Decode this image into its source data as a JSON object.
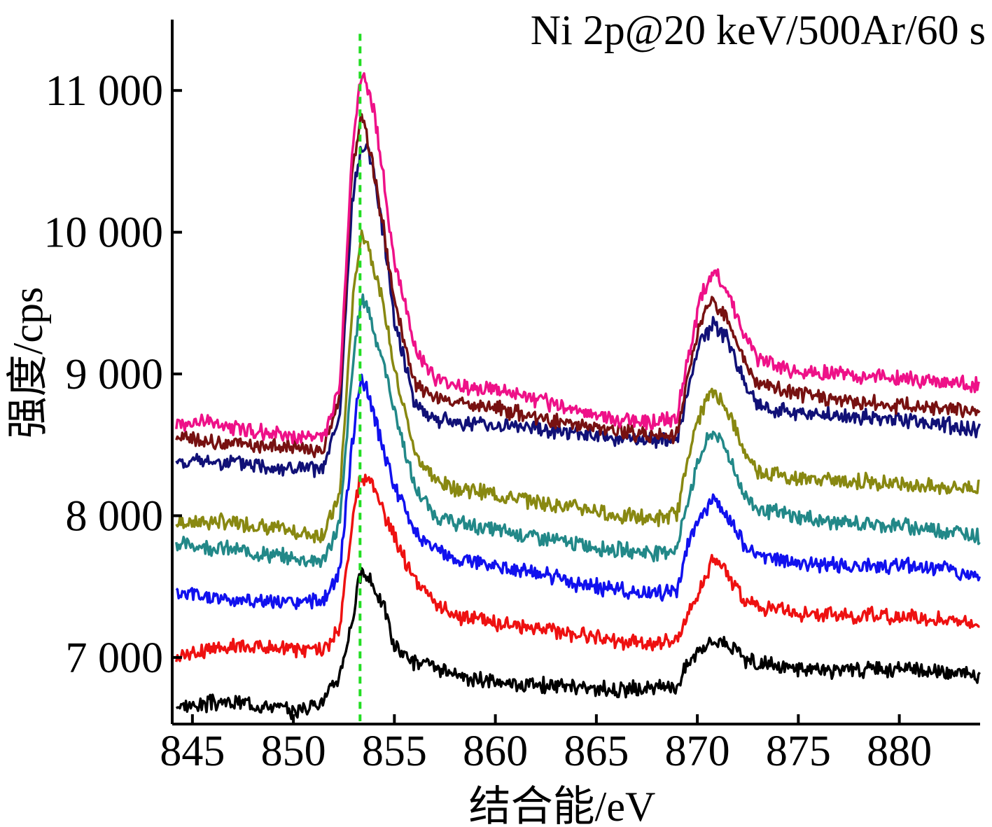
{
  "chart_data": {
    "type": "line",
    "title": "Ni 2p@20 keV/500Ar/60 s",
    "xlabel": "结合能/eV",
    "ylabel": "强度/cps",
    "xlim": [
      844,
      884
    ],
    "ylim": [
      6530,
      11500
    ],
    "xticks": [
      845,
      850,
      855,
      860,
      865,
      870,
      875,
      880
    ],
    "xtick_labels": [
      "845",
      "850",
      "855",
      "860",
      "865",
      "870",
      "875",
      "880"
    ],
    "yticks": [
      7000,
      8000,
      9000,
      10000,
      11000
    ],
    "ytick_labels": [
      "7 000",
      "8 000",
      "9 000",
      "10 000",
      "11 000"
    ],
    "reference_line": {
      "x": 853.3,
      "y_range": [
        6550,
        11400
      ],
      "color": "#22dd22",
      "style": "dashed"
    },
    "grid": false,
    "legend": "none",
    "series": [
      {
        "color": "#000000",
        "values": [
          [
            844.2,
            6650
          ],
          [
            846,
            6680
          ],
          [
            848,
            6680
          ],
          [
            850,
            6620
          ],
          [
            851.5,
            6700
          ],
          [
            852.3,
            6880
          ],
          [
            852.9,
            7250
          ],
          [
            853.3,
            7580
          ],
          [
            853.6,
            7580
          ],
          [
            854,
            7500
          ],
          [
            854.5,
            7350
          ],
          [
            855,
            7080
          ],
          [
            856,
            6970
          ],
          [
            857,
            6930
          ],
          [
            858,
            6860
          ],
          [
            860,
            6830
          ],
          [
            862,
            6810
          ],
          [
            864,
            6790
          ],
          [
            866,
            6770
          ],
          [
            868,
            6780
          ],
          [
            869,
            6800
          ],
          [
            869.5,
            6960
          ],
          [
            870.2,
            7080
          ],
          [
            870.8,
            7120
          ],
          [
            871.5,
            7110
          ],
          [
            872.3,
            6990
          ],
          [
            873,
            6950
          ],
          [
            875,
            6920
          ],
          [
            877,
            6910
          ],
          [
            880,
            6920
          ],
          [
            882,
            6900
          ],
          [
            884,
            6870
          ]
        ]
      },
      {
        "color": "#ee1111",
        "values": [
          [
            844.2,
            7000
          ],
          [
            846,
            7070
          ],
          [
            848,
            7080
          ],
          [
            850,
            7060
          ],
          [
            851.5,
            7050
          ],
          [
            852.3,
            7200
          ],
          [
            852.9,
            7950
          ],
          [
            853.3,
            8250
          ],
          [
            853.6,
            8270
          ],
          [
            854,
            8200
          ],
          [
            854.5,
            8000
          ],
          [
            855,
            7850
          ],
          [
            856,
            7550
          ],
          [
            857,
            7380
          ],
          [
            858,
            7290
          ],
          [
            860,
            7240
          ],
          [
            862,
            7210
          ],
          [
            864,
            7170
          ],
          [
            866,
            7120
          ],
          [
            868,
            7100
          ],
          [
            869,
            7110
          ],
          [
            869.5,
            7300
          ],
          [
            870.2,
            7520
          ],
          [
            870.8,
            7700
          ],
          [
            871.5,
            7600
          ],
          [
            872.3,
            7400
          ],
          [
            873,
            7360
          ],
          [
            875,
            7310
          ],
          [
            877,
            7300
          ],
          [
            880,
            7290
          ],
          [
            882,
            7270
          ],
          [
            884,
            7230
          ]
        ]
      },
      {
        "color": "#1111ee",
        "values": [
          [
            844.2,
            7450
          ],
          [
            846,
            7420
          ],
          [
            848,
            7400
          ],
          [
            850,
            7380
          ],
          [
            851.5,
            7400
          ],
          [
            852.3,
            7600
          ],
          [
            852.9,
            8500
          ],
          [
            853.3,
            8950
          ],
          [
            853.6,
            8920
          ],
          [
            854,
            8700
          ],
          [
            854.5,
            8450
          ],
          [
            855,
            8200
          ],
          [
            856,
            7900
          ],
          [
            857,
            7760
          ],
          [
            858,
            7700
          ],
          [
            860,
            7650
          ],
          [
            862,
            7600
          ],
          [
            864,
            7520
          ],
          [
            866,
            7480
          ],
          [
            868,
            7450
          ],
          [
            869,
            7470
          ],
          [
            869.5,
            7780
          ],
          [
            870.2,
            8000
          ],
          [
            870.8,
            8120
          ],
          [
            871.5,
            8000
          ],
          [
            872.3,
            7790
          ],
          [
            873,
            7720
          ],
          [
            875,
            7670
          ],
          [
            877,
            7650
          ],
          [
            880,
            7650
          ],
          [
            882,
            7630
          ],
          [
            884,
            7580
          ]
        ]
      },
      {
        "color": "#228888",
        "values": [
          [
            844.2,
            7800
          ],
          [
            846,
            7780
          ],
          [
            848,
            7740
          ],
          [
            850,
            7700
          ],
          [
            851.5,
            7680
          ],
          [
            852.3,
            7950
          ],
          [
            852.9,
            9000
          ],
          [
            853.3,
            9500
          ],
          [
            853.6,
            9520
          ],
          [
            854,
            9300
          ],
          [
            854.5,
            9050
          ],
          [
            855,
            8750
          ],
          [
            856,
            8200
          ],
          [
            857,
            8000
          ],
          [
            858,
            7950
          ],
          [
            860,
            7900
          ],
          [
            862,
            7850
          ],
          [
            864,
            7800
          ],
          [
            866,
            7760
          ],
          [
            868,
            7740
          ],
          [
            869,
            7770
          ],
          [
            869.5,
            8100
          ],
          [
            870.2,
            8450
          ],
          [
            870.8,
            8600
          ],
          [
            871.5,
            8450
          ],
          [
            872.3,
            8150
          ],
          [
            873,
            8050
          ],
          [
            875,
            7990
          ],
          [
            877,
            7950
          ],
          [
            880,
            7930
          ],
          [
            882,
            7900
          ],
          [
            884,
            7860
          ]
        ]
      },
      {
        "color": "#888811",
        "values": [
          [
            844.2,
            7950
          ],
          [
            846,
            7960
          ],
          [
            848,
            7940
          ],
          [
            850,
            7880
          ],
          [
            851.5,
            7870
          ],
          [
            852.3,
            8150
          ],
          [
            852.9,
            9450
          ],
          [
            853.3,
            9950
          ],
          [
            853.6,
            9970
          ],
          [
            854,
            9750
          ],
          [
            854.5,
            9450
          ],
          [
            855,
            9050
          ],
          [
            856,
            8450
          ],
          [
            857,
            8250
          ],
          [
            858,
            8200
          ],
          [
            860,
            8150
          ],
          [
            862,
            8100
          ],
          [
            864,
            8060
          ],
          [
            866,
            8000
          ],
          [
            868,
            7980
          ],
          [
            869,
            8010
          ],
          [
            869.5,
            8400
          ],
          [
            870.2,
            8750
          ],
          [
            870.8,
            8880
          ],
          [
            871.5,
            8750
          ],
          [
            872.3,
            8450
          ],
          [
            873,
            8320
          ],
          [
            875,
            8260
          ],
          [
            877,
            8250
          ],
          [
            880,
            8230
          ],
          [
            882,
            8200
          ],
          [
            884,
            8200
          ]
        ]
      },
      {
        "color": "#111177",
        "values": [
          [
            844.2,
            8380
          ],
          [
            846,
            8380
          ],
          [
            848,
            8360
          ],
          [
            850,
            8330
          ],
          [
            851.5,
            8330
          ],
          [
            852.3,
            8700
          ],
          [
            852.9,
            10200
          ],
          [
            853.3,
            10550
          ],
          [
            853.6,
            10650
          ],
          [
            854,
            10400
          ],
          [
            854.5,
            9950
          ],
          [
            855,
            9400
          ],
          [
            856,
            8800
          ],
          [
            857,
            8680
          ],
          [
            858,
            8660
          ],
          [
            860,
            8640
          ],
          [
            862,
            8620
          ],
          [
            864,
            8580
          ],
          [
            866,
            8540
          ],
          [
            868,
            8530
          ],
          [
            869,
            8550
          ],
          [
            869.5,
            8850
          ],
          [
            870.2,
            9250
          ],
          [
            870.8,
            9350
          ],
          [
            871.5,
            9250
          ],
          [
            872.3,
            8950
          ],
          [
            873,
            8780
          ],
          [
            875,
            8720
          ],
          [
            877,
            8700
          ],
          [
            880,
            8680
          ],
          [
            882,
            8650
          ],
          [
            884,
            8600
          ]
        ]
      },
      {
        "color": "#771111",
        "values": [
          [
            844.2,
            8550
          ],
          [
            846,
            8520
          ],
          [
            848,
            8500
          ],
          [
            850,
            8480
          ],
          [
            851.5,
            8460
          ],
          [
            852.3,
            8850
          ],
          [
            852.9,
            10400
          ],
          [
            853.3,
            10800
          ],
          [
            853.6,
            10700
          ],
          [
            854,
            10400
          ],
          [
            854.5,
            10000
          ],
          [
            855,
            9500
          ],
          [
            856,
            8930
          ],
          [
            857,
            8830
          ],
          [
            858,
            8800
          ],
          [
            860,
            8760
          ],
          [
            862,
            8700
          ],
          [
            864,
            8640
          ],
          [
            866,
            8600
          ],
          [
            868,
            8560
          ],
          [
            869,
            8580
          ],
          [
            869.5,
            8950
          ],
          [
            870.2,
            9400
          ],
          [
            870.8,
            9520
          ],
          [
            871.5,
            9400
          ],
          [
            872.3,
            9100
          ],
          [
            873,
            8930
          ],
          [
            875,
            8860
          ],
          [
            877,
            8820
          ],
          [
            880,
            8780
          ],
          [
            882,
            8760
          ],
          [
            884,
            8730
          ]
        ]
      },
      {
        "color": "#ee1188",
        "values": [
          [
            844.2,
            8650
          ],
          [
            846,
            8660
          ],
          [
            848,
            8600
          ],
          [
            850,
            8560
          ],
          [
            851.5,
            8550
          ],
          [
            852.3,
            8900
          ],
          [
            852.9,
            10550
          ],
          [
            853.3,
            11100
          ],
          [
            853.6,
            11050
          ],
          [
            854,
            10850
          ],
          [
            854.5,
            10350
          ],
          [
            855,
            9800
          ],
          [
            856,
            9200
          ],
          [
            857,
            8950
          ],
          [
            858,
            8920
          ],
          [
            860,
            8880
          ],
          [
            862,
            8820
          ],
          [
            864,
            8740
          ],
          [
            866,
            8680
          ],
          [
            868,
            8660
          ],
          [
            869,
            8700
          ],
          [
            869.5,
            9100
          ],
          [
            870.2,
            9550
          ],
          [
            870.8,
            9720
          ],
          [
            871.5,
            9580
          ],
          [
            872.3,
            9280
          ],
          [
            873,
            9100
          ],
          [
            875,
            9020
          ],
          [
            877,
            9000
          ],
          [
            880,
            8970
          ],
          [
            882,
            8940
          ],
          [
            884,
            8920
          ]
        ]
      }
    ]
  }
}
